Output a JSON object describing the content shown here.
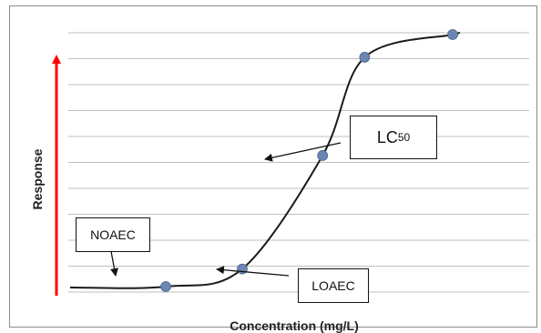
{
  "chart_data": {
    "type": "line",
    "title": "",
    "xlabel": "Concentration (mg/L)",
    "ylabel": "Response",
    "grid": true,
    "points": [
      {
        "x": 2.5,
        "y": 0.0
      },
      {
        "x": 4.5,
        "y": 0.07
      },
      {
        "x": 6.6,
        "y": 0.52
      },
      {
        "x": 7.7,
        "y": 0.91
      },
      {
        "x": 10.0,
        "y": 1.0
      }
    ],
    "annotations": [
      {
        "text": "NOAEC",
        "point_index": 0
      },
      {
        "text": "LOAEC",
        "point_index": 1
      },
      {
        "text": "LC",
        "subscript": "50",
        "point_index": 2
      }
    ],
    "colors": {
      "curve": "#1a1a1a",
      "points": "#6b86b3",
      "arrow": "#ff0000",
      "grid": "#bfbfbf"
    }
  }
}
